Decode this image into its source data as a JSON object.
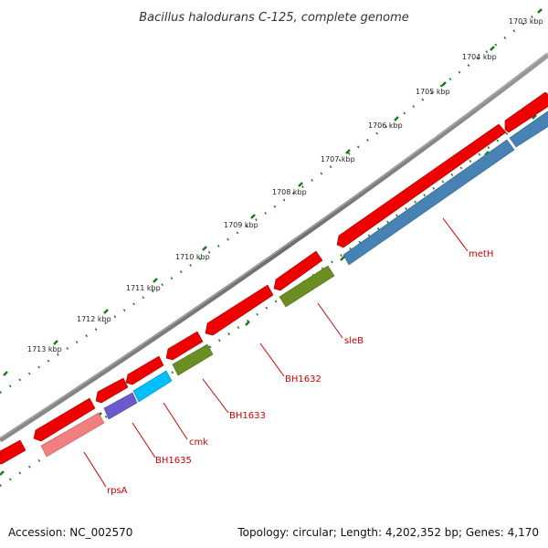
{
  "title": "Bacillus halodurans C-125, complete genome",
  "footer": {
    "accession": "Accession: NC_002570",
    "summary": "Topology: circular; Length: 4,202,352 bp; Genes: 4,170"
  },
  "scale_labels": [
    "1703 kbp",
    "1704 kbp",
    "1705 kbp",
    "1706 kbp",
    "1707 kbp",
    "1708 kbp",
    "1709 kbp",
    "1710 kbp",
    "1711 kbp",
    "1712 kbp",
    "1713 kbp"
  ],
  "gene_labels": [
    "metH",
    "sleB",
    "BH1632",
    "BH1633",
    "cmk",
    "BH1635",
    "rpsA"
  ],
  "colors": {
    "backbone": "#7a7a7a",
    "forward_gene": "#ee0000",
    "tick": "#1a7a1a",
    "label": "#cc0000",
    "metH": "#4682b4",
    "sleB": "#6b8e23",
    "BH1633": "#6b8e23",
    "cmk": "#00bfff",
    "BH1635": "#6a5acd",
    "rpsA": "#f08080"
  }
}
